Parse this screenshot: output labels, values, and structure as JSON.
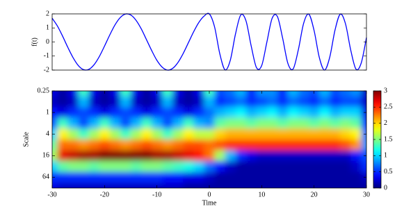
{
  "chart_data": [
    {
      "type": "line",
      "ylabel": "f(t)",
      "color": "#0000ff",
      "xlim": [
        -30,
        30
      ],
      "ylim": [
        -2,
        2
      ],
      "yticks": [
        -2,
        -1,
        0,
        1,
        2
      ],
      "x": [
        -30,
        -29,
        -28,
        -27,
        -26,
        -25,
        -24,
        -23,
        -22,
        -21,
        -20,
        -19,
        -18,
        -17,
        -16,
        -15,
        -14,
        -13,
        -12,
        -11,
        -10,
        -9,
        -8,
        -7,
        -6,
        -5,
        -4,
        -3,
        -2,
        -1,
        0,
        1,
        2,
        3,
        4,
        5,
        6,
        7,
        8,
        9,
        10,
        11,
        12,
        13,
        14,
        15,
        16,
        17,
        18,
        19,
        20,
        21,
        22,
        23,
        24,
        25,
        26,
        27,
        28,
        29,
        30
      ],
      "values": [
        1.69,
        1.14,
        0.41,
        -0.39,
        -1.12,
        -1.68,
        -1.97,
        -1.95,
        -1.62,
        -1.04,
        -0.29,
        0.5,
        1.22,
        1.74,
        1.99,
        1.92,
        1.55,
        0.94,
        0.17,
        -0.61,
        -1.31,
        -1.79,
        -2.0,
        -1.88,
        -1.47,
        -0.83,
        -0.06,
        0.72,
        1.39,
        1.84,
        2.0,
        1.08,
        -0.83,
        -1.98,
        -1.31,
        0.57,
        1.92,
        1.51,
        -0.29,
        -1.82,
        -1.68,
        0.01,
        1.69,
        1.81,
        0.27,
        -1.52,
        -1.92,
        -0.55,
        1.32,
        1.98,
        0.82,
        -1.1,
        -2.0,
        -1.07,
        0.85,
        1.98,
        1.29,
        -0.58,
        -1.93,
        -1.5,
        0.31
      ]
    },
    {
      "type": "heatmap",
      "xlabel": "Time",
      "ylabel": "Scale",
      "colormap": "jet",
      "ylog": true,
      "yreverse": true,
      "xlim": [
        -30,
        30
      ],
      "xticks": [
        -30,
        -20,
        -10,
        0,
        10,
        20,
        30
      ],
      "ylim": [
        0.25,
        128
      ],
      "yticks": [
        0.25,
        1,
        4,
        16,
        64
      ],
      "colorbar": {
        "lim": [
          0,
          3
        ],
        "ticks": [
          0,
          0.5,
          1,
          1.5,
          2,
          2.5,
          3
        ]
      },
      "x": [
        -30,
        -28,
        -26,
        -24,
        -22,
        -20,
        -18,
        -16,
        -14,
        -12,
        -10,
        -8,
        -6,
        -4,
        -2,
        0,
        2,
        4,
        6,
        8,
        10,
        12,
        14,
        16,
        18,
        20,
        22,
        24,
        26,
        28,
        30
      ],
      "y": [
        0.25,
        0.5,
        1,
        2,
        4,
        8,
        16,
        32,
        64,
        128
      ],
      "z": [
        [
          0.3,
          0.1,
          0.3,
          1.3,
          0.3,
          0.1,
          0.3,
          1.3,
          0.3,
          0.1,
          0.3,
          1.3,
          0.3,
          0.1,
          0.3,
          1.3,
          0.6,
          0.7,
          0.9,
          0.5,
          0.8,
          0.8,
          0.5,
          0.9,
          0.7,
          0.6,
          0.9,
          0.6,
          0.7,
          0.8,
          0.2
        ],
        [
          0.2,
          0.1,
          0.2,
          0.9,
          0.2,
          0.1,
          0.2,
          0.9,
          0.2,
          0.1,
          0.2,
          0.9,
          0.2,
          0.1,
          0.2,
          0.9,
          0.5,
          0.6,
          0.7,
          0.5,
          0.6,
          0.7,
          0.5,
          0.7,
          0.6,
          0.5,
          0.7,
          0.5,
          0.6,
          0.6,
          0.2
        ],
        [
          0.4,
          0.3,
          0.5,
          0.6,
          0.5,
          0.3,
          0.5,
          0.6,
          0.5,
          0.3,
          0.5,
          0.6,
          0.5,
          0.3,
          0.5,
          0.7,
          0.9,
          1.0,
          1.1,
          0.9,
          1.0,
          1.1,
          0.9,
          1.1,
          1.0,
          0.9,
          1.1,
          0.9,
          1.0,
          1.0,
          0.3
        ],
        [
          0.6,
          1.3,
          0.9,
          0.6,
          0.9,
          1.3,
          0.9,
          0.6,
          0.9,
          1.3,
          0.9,
          0.6,
          0.9,
          1.3,
          0.9,
          0.8,
          1.4,
          1.5,
          1.5,
          1.4,
          1.5,
          1.5,
          1.4,
          1.5,
          1.5,
          1.4,
          1.5,
          1.4,
          1.5,
          1.4,
          0.5
        ],
        [
          1.0,
          1.9,
          1.6,
          1.3,
          1.6,
          1.9,
          1.6,
          1.3,
          1.6,
          1.9,
          1.6,
          1.3,
          1.6,
          1.9,
          1.7,
          1.7,
          2.0,
          2.1,
          2.1,
          2.1,
          2.1,
          2.1,
          2.1,
          2.1,
          2.1,
          2.1,
          2.1,
          2.1,
          2.0,
          1.9,
          0.7
        ],
        [
          1.4,
          2.3,
          2.3,
          2.2,
          2.3,
          2.4,
          2.3,
          2.2,
          2.3,
          2.4,
          2.3,
          2.2,
          2.3,
          2.4,
          2.4,
          2.3,
          2.4,
          2.5,
          2.5,
          2.5,
          2.5,
          2.5,
          2.5,
          2.5,
          2.5,
          2.5,
          2.5,
          2.5,
          2.4,
          2.2,
          0.8
        ],
        [
          1.6,
          2.7,
          2.8,
          2.9,
          2.9,
          3.0,
          3.0,
          3.0,
          3.0,
          3.0,
          2.9,
          2.9,
          2.8,
          2.7,
          2.6,
          2.3,
          1.6,
          0.9,
          0.5,
          0.3,
          0.2,
          0.2,
          0.2,
          0.2,
          0.2,
          0.2,
          0.2,
          0.2,
          0.2,
          0.4,
          0.6
        ],
        [
          1.0,
          1.4,
          1.5,
          1.5,
          1.4,
          1.5,
          1.5,
          1.5,
          1.4,
          1.5,
          1.5,
          1.4,
          1.3,
          1.2,
          1.0,
          0.7,
          0.4,
          0.2,
          0.1,
          0.1,
          0.1,
          0.1,
          0.1,
          0.1,
          0.1,
          0.1,
          0.1,
          0.1,
          0.1,
          0.2,
          0.5
        ],
        [
          0.5,
          0.5,
          0.5,
          0.5,
          0.5,
          0.5,
          0.5,
          0.5,
          0.5,
          0.5,
          0.5,
          0.4,
          0.4,
          0.3,
          0.3,
          0.2,
          0.1,
          0.1,
          0.1,
          0.1,
          0.1,
          0.1,
          0.1,
          0.1,
          0.1,
          0.1,
          0.1,
          0.1,
          0.1,
          0.1,
          0.2
        ],
        [
          0.3,
          0.2,
          0.2,
          0.2,
          0.2,
          0.2,
          0.2,
          0.2,
          0.2,
          0.2,
          0.2,
          0.2,
          0.2,
          0.1,
          0.1,
          0.1,
          0.1,
          0.1,
          0.1,
          0.1,
          0.1,
          0.1,
          0.1,
          0.1,
          0.1,
          0.1,
          0.1,
          0.1,
          0.1,
          0.1,
          0.1
        ]
      ]
    }
  ]
}
